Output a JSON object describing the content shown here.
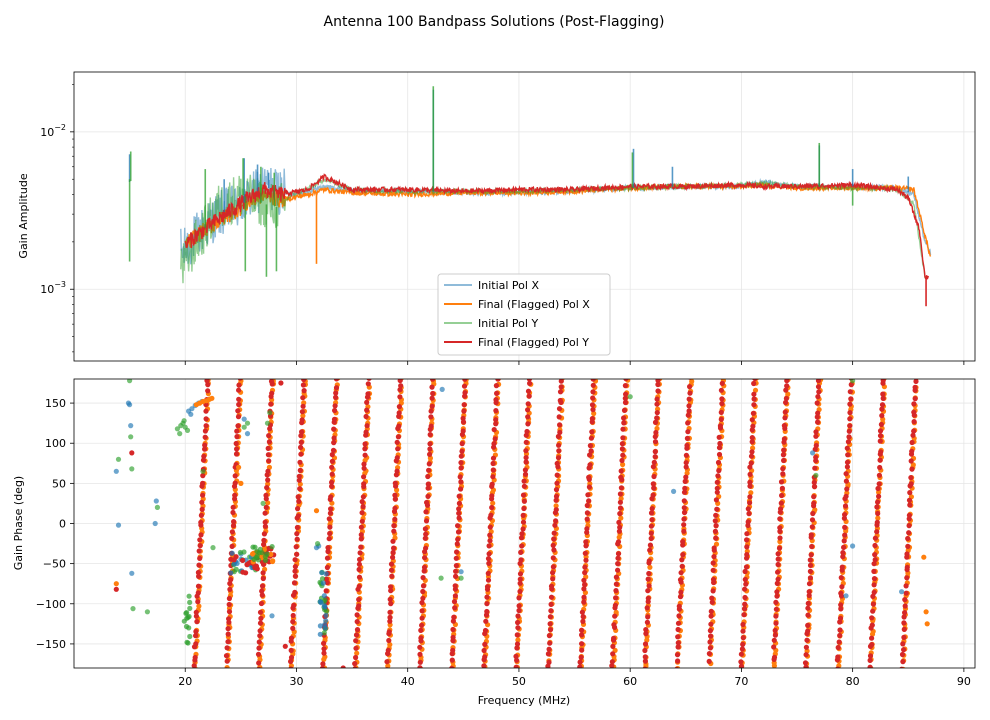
{
  "chart_data": {
    "type": "line",
    "title": "Antenna 100 Bandpass Solutions (Post-Flagging)",
    "xlabel": "Frequency (MHz)",
    "xlim": [
      10,
      91
    ],
    "xticks": [
      20,
      30,
      40,
      50,
      60,
      70,
      80,
      90
    ],
    "xtick_labels": [
      "20",
      "30",
      "40",
      "50",
      "60",
      "70",
      "80",
      "90"
    ],
    "colors": {
      "initial_pol_x": "#1f77b4",
      "final_pol_x": "#ff7f0e",
      "initial_pol_y": "#2ca02c",
      "final_pol_y": "#d62728",
      "grid": "#e6e6e6",
      "axis": "#000000"
    },
    "legend": {
      "location": "lower-center",
      "entries": [
        "Initial Pol X",
        "Final (Flagged) Pol X",
        "Initial Pol Y",
        "Final (Flagged) Pol Y"
      ]
    },
    "amplitude_panel": {
      "ylabel": "Gain Amplitude",
      "yscale": "log",
      "ylim": [
        0.00035,
        0.024
      ],
      "ytick_labels": [
        {
          "value": 0.01,
          "base": "10",
          "exp": "−2"
        },
        {
          "value": 0.001,
          "base": "10",
          "exp": "−3"
        }
      ],
      "series": [
        {
          "name": "Initial Pol X",
          "x": [
            15,
            19.8,
            21,
            23,
            25,
            27,
            28.5,
            29.5,
            31,
            32.5,
            35,
            40,
            45,
            50,
            55,
            60,
            65,
            70,
            72,
            75,
            80,
            84,
            85.5,
            86.5,
            87
          ],
          "y": [
            0.0048,
            0.0017,
            0.0022,
            0.003,
            0.0034,
            0.0045,
            0.0042,
            0.004,
            0.0042,
            0.0045,
            0.0042,
            0.0042,
            0.0041,
            0.0041,
            0.0042,
            0.0044,
            0.0045,
            0.0045,
            0.0048,
            0.0045,
            0.0045,
            0.0044,
            0.004,
            0.002,
            0.0017
          ]
        },
        {
          "name": "Final (Flagged) Pol X",
          "x": [
            20,
            21,
            23,
            25,
            27,
            28.5,
            29.5,
            31,
            32.5,
            35,
            40,
            45,
            50,
            55,
            60,
            65,
            70,
            72,
            75,
            80,
            84,
            85.5,
            86.5,
            87
          ],
          "y": [
            0.0019,
            0.0022,
            0.0027,
            0.0033,
            0.004,
            0.0037,
            0.0038,
            0.004,
            0.0043,
            0.0041,
            0.004,
            0.0041,
            0.0041,
            0.0042,
            0.0044,
            0.0045,
            0.0045,
            0.0046,
            0.0044,
            0.0044,
            0.0044,
            0.0043,
            0.0022,
            0.0016
          ]
        },
        {
          "name": "Initial Pol Y",
          "x": [
            15,
            19.8,
            21,
            23,
            25,
            27,
            28.5,
            29.5,
            31,
            32.5,
            35,
            40,
            45,
            50,
            55,
            60,
            65,
            70,
            72,
            75,
            80,
            84,
            85.5,
            86.5
          ],
          "y": [
            0.005,
            0.0014,
            0.002,
            0.0033,
            0.004,
            0.0035,
            0.0033,
            0.004,
            0.0043,
            0.005,
            0.0043,
            0.0042,
            0.0042,
            0.0042,
            0.0043,
            0.0044,
            0.0045,
            0.0046,
            0.0047,
            0.0045,
            0.0044,
            0.0043,
            0.0035,
            0.0012
          ]
        },
        {
          "name": "Final (Flagged) Pol Y",
          "x": [
            20,
            21,
            23,
            25,
            27,
            28.5,
            29.5,
            31,
            32.5,
            35,
            40,
            45,
            50,
            55,
            60,
            65,
            70,
            72,
            75,
            80,
            84,
            85,
            86,
            86.5,
            86.8
          ],
          "y": [
            0.0019,
            0.0022,
            0.0028,
            0.0035,
            0.0043,
            0.004,
            0.0041,
            0.0043,
            0.0052,
            0.0043,
            0.0043,
            0.0042,
            0.0043,
            0.0043,
            0.0045,
            0.0045,
            0.0046,
            0.0045,
            0.0045,
            0.0046,
            0.0043,
            0.0038,
            0.0024,
            0.0012,
            0.0012
          ]
        }
      ],
      "spikes": [
        {
          "series": "Initial Pol X",
          "x": [
            15,
            23.5,
            25.3,
            26.5,
            27.5,
            42.3,
            60.3,
            63.8,
            77,
            80,
            85
          ],
          "y": [
            0.0072,
            0.005,
            0.0068,
            0.0062,
            0.0055,
            0.0185,
            0.0078,
            0.006,
            0.0082,
            0.0058,
            0.0052
          ]
        },
        {
          "series": "Initial Pol Y",
          "x": [
            15.1,
            21.8,
            25.2,
            26.8,
            28.0,
            42.3,
            60.2,
            77.0
          ],
          "y": [
            0.0075,
            0.0058,
            0.0068,
            0.006,
            0.0055,
            0.0195,
            0.0074,
            0.0085
          ]
        },
        {
          "series": "Initial Pol Y",
          "x": [
            15,
            25.4,
            27.3,
            28.2,
            80.0
          ],
          "y": [
            0.0015,
            0.0013,
            0.0012,
            0.0013,
            0.0034
          ]
        },
        {
          "series": "Final (Flagged) Pol X",
          "x": [
            31.8
          ],
          "y": [
            0.00145
          ]
        },
        {
          "series": "Final (Flagged) Pol Y",
          "x": [
            86.6
          ],
          "y": [
            0.00078
          ]
        }
      ]
    },
    "phase_panel": {
      "ylabel": "Gain Phase (deg)",
      "ylim": [
        -180,
        180
      ],
      "yticks": [
        -150,
        -100,
        -50,
        0,
        50,
        100,
        150
      ],
      "ytick_labels": [
        "−150",
        "−100",
        "−50",
        "0",
        "50",
        "100",
        "150"
      ],
      "wrap_series": [
        {
          "name": "Final (Flagged) Pol X",
          "start": 20.8,
          "period": 2.893,
          "wraps": 23,
          "x_offset": 0.1
        },
        {
          "name": "Final (Flagged) Pol Y",
          "start": 20.8,
          "period": 2.893,
          "wraps": 23,
          "x_offset": 0.0
        }
      ],
      "scatter": [
        {
          "series": "Initial Pol Y",
          "x": [
            19.3,
            19.6,
            19.8,
            20.0,
            20.2,
            19.5,
            19.9
          ],
          "y": [
            118,
            122,
            125,
            120,
            116,
            112,
            128
          ]
        },
        {
          "series": "Initial Pol X",
          "x": [
            20.3,
            20.6,
            20.9,
            21.2,
            21.5,
            20.5
          ],
          "y": [
            140,
            143,
            147,
            150,
            152,
            136
          ]
        },
        {
          "series": "Final (Flagged) Pol X",
          "x": [
            21.0,
            21.3,
            21.6,
            21.9,
            22.2,
            22.4
          ],
          "y": [
            148,
            150,
            152,
            153,
            155,
            156
          ]
        },
        {
          "series": "Initial Pol X",
          "x": [
            13.8,
            14.0,
            14.9,
            15.0,
            15.1,
            15.2,
            17.4,
            17.3,
            25.3,
            25.6,
            27.8,
            26.1,
            25.0,
            43.1,
            44.8,
            63.9,
            76.4,
            80.0,
            79.4,
            84.4,
            32.0,
            31.8
          ],
          "y": [
            65,
            -2,
            150,
            148,
            122,
            -62,
            28,
            0,
            130,
            112,
            -115,
            -55,
            -38,
            167,
            -60,
            40,
            88,
            -28,
            -90,
            -85,
            -28,
            -30
          ]
        },
        {
          "series": "Initial Pol Y",
          "x": [
            14.0,
            15.0,
            15.1,
            15.2,
            15.3,
            16.6,
            17.5,
            25.3,
            25.6,
            27.0,
            27.4,
            27.6,
            22.5,
            21.6,
            31.9,
            43.0,
            44.8,
            60.0,
            76.7,
            80.0
          ],
          "y": [
            80,
            178,
            108,
            68,
            -106,
            -110,
            20,
            120,
            125,
            25,
            125,
            138,
            -30,
            65,
            -25,
            -68,
            -68,
            158,
            60,
            178
          ]
        },
        {
          "series": "Final (Flagged) Pol Y",
          "x": [
            13.8,
            15.2,
            28.6,
            29.0,
            34.2
          ],
          "y": [
            -82,
            88,
            175,
            -153,
            -180
          ]
        },
        {
          "series": "Final (Flagged) Pol X",
          "x": [
            13.8,
            31.8,
            86.4,
            86.6,
            86.7,
            24.8,
            25.0
          ],
          "y": [
            -75,
            16,
            -42,
            -110,
            -125,
            70,
            50
          ]
        }
      ],
      "clusters": [
        {
          "cx": 25.3,
          "cy": -48,
          "spread_x": 1.2,
          "spread_y": 14,
          "series": [
            "Initial Pol Y",
            "Initial Pol X",
            "Final (Flagged) Pol Y"
          ]
        },
        {
          "cx": 27.0,
          "cy": -38,
          "spread_x": 1.0,
          "spread_y": 10,
          "series": [
            "Final (Flagged) Pol Y",
            "Final (Flagged) Pol X",
            "Initial Pol Y"
          ]
        },
        {
          "cx": 32.4,
          "cy": -100,
          "spread_x": 0.3,
          "spread_y": 40,
          "series": [
            "Initial Pol Y",
            "Initial Pol X"
          ]
        },
        {
          "cx": 20.2,
          "cy": -120,
          "spread_x": 0.3,
          "spread_y": 30,
          "series": [
            "Initial Pol Y"
          ]
        }
      ]
    }
  }
}
